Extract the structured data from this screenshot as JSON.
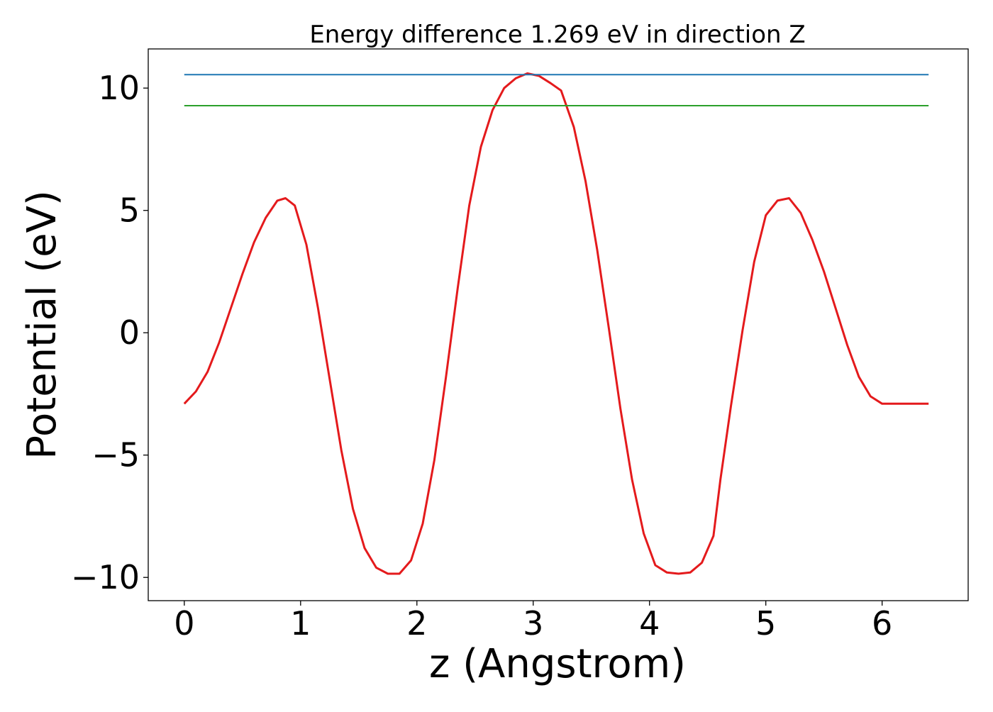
{
  "chart_data": {
    "type": "line",
    "title": "Energy difference 1.269 eV in direction Z",
    "xlabel": "z (Angstrom)",
    "ylabel": "Potential (eV)",
    "xlim": [
      -0.31,
      6.74
    ],
    "ylim": [
      -10.95,
      11.6
    ],
    "xticks": [
      0,
      1,
      2,
      3,
      4,
      5,
      6
    ],
    "yticks": [
      -10,
      -5,
      0,
      5,
      10
    ],
    "ytick_labels": [
      "−10",
      "−5",
      "0",
      "5",
      "10"
    ],
    "grid": false,
    "legend": "none",
    "series": [
      {
        "kind": "curve",
        "color": "#e41a1c",
        "x": [
          0,
          0.1,
          0.2,
          0.3,
          0.4,
          0.5,
          0.6,
          0.7,
          0.8,
          0.87,
          0.95,
          1.05,
          1.15,
          1.25,
          1.35,
          1.45,
          1.55,
          1.65,
          1.75,
          1.85,
          1.95,
          2.05,
          2.15,
          2.25,
          2.35,
          2.45,
          2.55,
          2.65,
          2.75,
          2.85,
          2.95,
          3.05,
          3.15,
          3.24,
          3.35,
          3.45,
          3.55,
          3.65,
          3.75,
          3.85,
          3.95,
          4.05,
          4.15,
          4.25,
          4.35,
          4.45,
          4.55,
          4.61,
          4.7,
          4.8,
          4.9,
          5.0,
          5.1,
          5.2,
          5.3,
          5.4,
          5.5,
          5.6,
          5.7,
          5.8,
          5.9,
          6.0,
          6.1,
          6.2,
          6.3,
          6.4
        ],
        "y": [
          -2.9,
          -2.4,
          -1.6,
          -0.4,
          1.0,
          2.4,
          3.7,
          4.7,
          5.4,
          5.5,
          5.2,
          3.6,
          1.0,
          -1.9,
          -4.8,
          -7.2,
          -8.8,
          -9.6,
          -9.85,
          -9.85,
          -9.3,
          -7.8,
          -5.2,
          -1.8,
          1.8,
          5.2,
          7.6,
          9.1,
          10.0,
          10.4,
          10.6,
          10.5,
          10.2,
          9.9,
          8.4,
          6.2,
          3.4,
          0.2,
          -3.1,
          -6.0,
          -8.2,
          -9.5,
          -9.8,
          -9.85,
          -9.8,
          -9.4,
          -8.3,
          -6.0,
          -3.0,
          0.1,
          2.9,
          4.8,
          5.4,
          5.5,
          4.9,
          3.8,
          2.5,
          1.0,
          -0.5,
          -1.8,
          -2.6,
          -2.9,
          -2.9,
          -2.9,
          -2.9,
          -2.9
        ]
      },
      {
        "kind": "hline",
        "color": "#1f77b4",
        "x": [
          0,
          6.4
        ],
        "y": [
          10.55,
          10.55
        ]
      },
      {
        "kind": "hline",
        "color": "#2ca02c",
        "x": [
          0,
          6.4
        ],
        "y": [
          9.28,
          9.28
        ]
      }
    ]
  }
}
